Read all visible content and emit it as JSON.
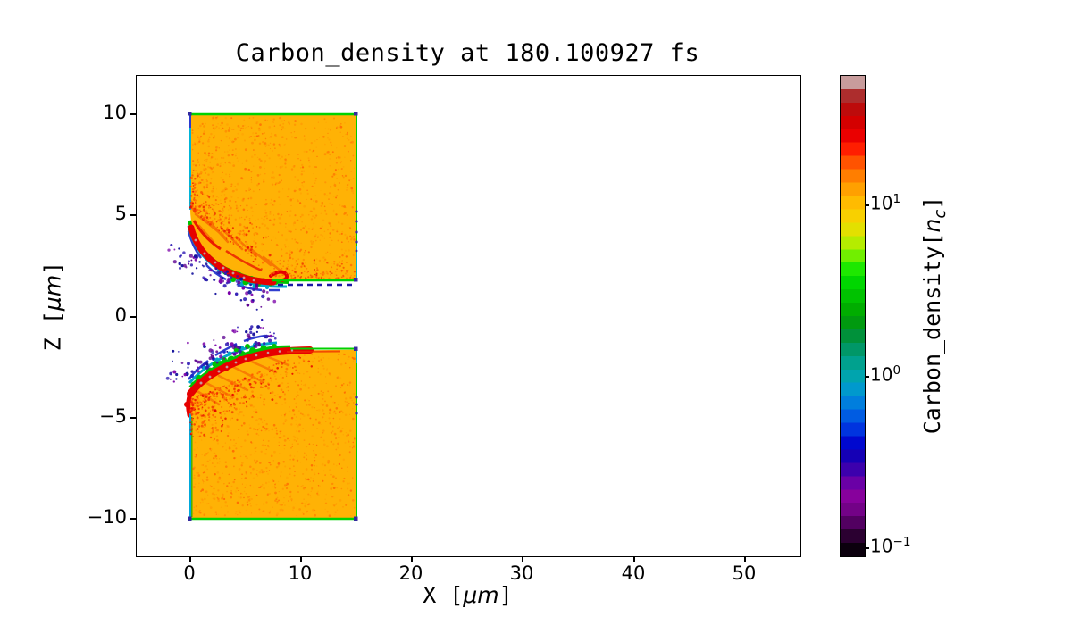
{
  "title": "Carbon_density at 180.100927 fs",
  "axes": {
    "x": {
      "label_pre": "X [",
      "label_unit": "μm",
      "label_post": "]",
      "ticks": [
        "0",
        "10",
        "20",
        "30",
        "40",
        "50"
      ]
    },
    "y": {
      "label_pre": "Z [",
      "label_unit": "μm",
      "label_post": "]",
      "ticks": [
        "10",
        "5",
        "0",
        "−5",
        "−10"
      ]
    }
  },
  "colorbar": {
    "label_pre": "Carbon_density[",
    "label_var": "n",
    "label_sub": "c",
    "label_post": "]",
    "ticks": [
      {
        "base": "10",
        "exp": "1"
      },
      {
        "base": "10",
        "exp": "0"
      },
      {
        "base": "10",
        "exp": "−1"
      }
    ],
    "band_colors": [
      "#0b000d",
      "#2b0031",
      "#520061",
      "#730287",
      "#87019c",
      "#6a00a6",
      "#3c00ad",
      "#1500b5",
      "#0008cf",
      "#0034df",
      "#005ce2",
      "#007edd",
      "#0099cd",
      "#00a4ae",
      "#00a18e",
      "#009767",
      "#00913a",
      "#009a0f",
      "#00ad00",
      "#00c200",
      "#00d600",
      "#1ee800",
      "#71ef00",
      "#b5ec00",
      "#e3e000",
      "#f8d000",
      "#ffbb00",
      "#ffa000",
      "#ff7e00",
      "#ff5300",
      "#ff1e00",
      "#ea0000",
      "#d40000",
      "#bd0b0b",
      "#ad2d2d",
      "#c89c9c"
    ]
  },
  "palette": {
    "slab_fill": "#ffb205",
    "hot_band": "#e60000",
    "edge_green": "#00d200",
    "edge_cyan": "#00b4d8",
    "fringe_blue": "#1f2ecc",
    "spray_purple": "#7a00a8",
    "knot_gray": "#c29a9c",
    "background": "#ffffff"
  },
  "chart_data": {
    "type": "heatmap",
    "title": "Carbon_density at 180.100927 fs",
    "time_fs": 180.100927,
    "xlabel": "X [μm]",
    "ylabel": "Z [μm]",
    "xlim": [
      -4.8,
      55
    ],
    "ylim": [
      -11.9,
      11.9
    ],
    "x_ticks": [
      0,
      10,
      20,
      30,
      40,
      50
    ],
    "y_ticks": [
      10,
      5,
      0,
      -5,
      -10
    ],
    "grid": false,
    "colorbar": {
      "label": "Carbon_density[n_c]",
      "scale": "log",
      "tick_values": [
        10,
        1,
        0.1
      ],
      "vmin": 0.09,
      "vmax": 56,
      "colormap": "nipy_spectral-like (black-purple-blue-cyan-green-yellow-orange-red-gray)",
      "position": "right"
    },
    "features": [
      {
        "name": "upper_target_slab",
        "shape": "rectangle",
        "x_um": [
          0,
          15
        ],
        "z_um": [
          1.8,
          10
        ],
        "density_nc": "~15 (uniform orange fill with faint red speckle noise)",
        "edges": "thin green/cyan outline, dark-blue corner dots, dashed dark-blue line just below lower edge"
      },
      {
        "name": "lower_target_slab",
        "shape": "rectangle",
        "x_um": [
          0,
          15
        ],
        "z_um": [
          -10,
          -1.8
        ],
        "density_nc": "~15 (uniform orange fill with faint red speckle noise)",
        "edges": "thin green/cyan outline, dark-blue corner dots"
      },
      {
        "name": "upper_slab_ablation_front",
        "location": "lower-left boundary of upper slab, x 0–7.5 μm, z 1.5–5 μm",
        "description": "wavy dense red filament band (~30–50 n_c) with gray knots, fringed outward by green, cyan and blue layers and scattered purple low-density droplets (~0.1–0.5 n_c)"
      },
      {
        "name": "lower_slab_ablation_front",
        "location": "upper-left boundary of lower slab, x 0–10 μm, z −1.5 to −5 μm",
        "description": "wavy dense red filament band rising to the right and merging with the flat surface near x≈10 μm, green/cyan/blue fringe above it, purple droplet spray, red-speckled orange wedge below"
      },
      {
        "name": "channel_gap",
        "location": "between slabs, |z| ≲ 1.7 μm",
        "description": "evacuated white region (density below colour scale)"
      }
    ],
    "background": "#ffffff"
  }
}
